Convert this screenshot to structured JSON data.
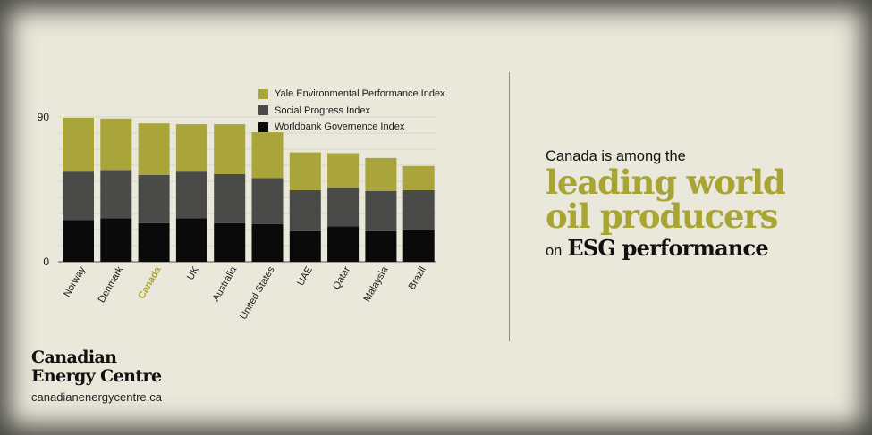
{
  "chart_data": {
    "type": "bar",
    "stacked": true,
    "categories": [
      "Norway",
      "Denmark",
      "Canada",
      "UK",
      "Australia",
      "United States",
      "UAE",
      "Qatar",
      "Malaysia",
      "Brazil"
    ],
    "highlight_category": "Canada",
    "series": [
      {
        "name": "Worldbank Governence Index",
        "color": "#0a0a0a",
        "values": [
          26,
          27,
          24,
          27,
          24,
          23.5,
          19,
          22,
          19,
          19.5
        ]
      },
      {
        "name": "Social Progress Index",
        "color": "#4a4a48",
        "values": [
          30,
          30,
          30,
          29,
          30.5,
          28.5,
          25.5,
          24,
          25,
          25
        ]
      },
      {
        "name": "Yale Environmental Performance Index",
        "color": "#aaa53a",
        "values": [
          33.5,
          32,
          32,
          29.5,
          31,
          28.5,
          23.5,
          21.5,
          20.5,
          15
        ]
      }
    ],
    "legend_order": [
      "Yale Environmental Performance Index",
      "Social Progress Index",
      "Worldbank Governence Index"
    ],
    "ylim": [
      0,
      90
    ],
    "yticks": [
      0,
      90
    ],
    "grid": true,
    "legend_position": "top-right"
  },
  "headline": {
    "line1": "Canada is among the",
    "line2": "leading world",
    "line3": "oil producers",
    "line4_prefix": "on",
    "line4_emphasis": "ESG performance"
  },
  "brand": {
    "name_line1": "Canadian",
    "name_line2": "Energy Centre",
    "url": "canadianenergycentre.ca"
  },
  "colors": {
    "background": "#e9e8da",
    "accent_olive": "#a9a534",
    "highlight_label": "#a9a534",
    "text": "#111111"
  }
}
